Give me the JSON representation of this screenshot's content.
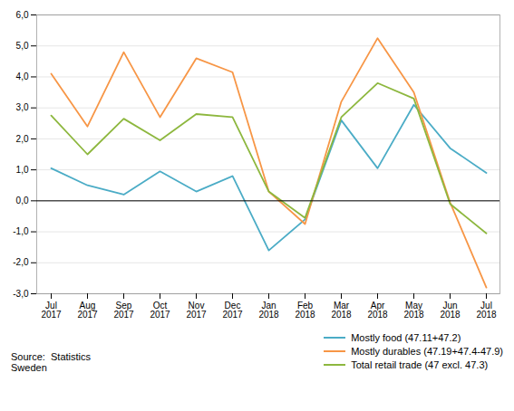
{
  "chart_data": {
    "type": "line",
    "categories": [
      "Jul\n2017",
      "Aug\n2017",
      "Sep\n2017",
      "Oct\n2017",
      "Nov\n2017",
      "Dec\n2017",
      "Jan\n2018",
      "Feb\n2018",
      "Mar\n2018",
      "Apr\n2018",
      "May\n2018",
      "Jun\n2018",
      "Jul\n2018"
    ],
    "series": [
      {
        "name": "Mostly food (47.11+47.2)",
        "color": "#4BACC6",
        "values": [
          1.05,
          0.5,
          0.2,
          0.95,
          0.3,
          0.8,
          -1.6,
          -0.6,
          2.6,
          1.05,
          3.1,
          1.7,
          0.9
        ]
      },
      {
        "name": "Mostly durables (47.19+47.4-47.9)",
        "color": "#F79646",
        "values": [
          4.1,
          2.4,
          4.8,
          2.7,
          4.6,
          4.15,
          0.3,
          -0.75,
          3.2,
          5.25,
          3.5,
          -0.05,
          -2.8
        ]
      },
      {
        "name": "Total retail trade (47 excl. 47.3)",
        "color": "#8DB73E",
        "values": [
          2.75,
          1.5,
          2.65,
          1.95,
          2.8,
          2.7,
          0.3,
          -0.55,
          2.7,
          3.8,
          3.3,
          -0.1,
          -1.05
        ]
      }
    ],
    "ylim": [
      -3.0,
      6.0
    ],
    "yticks": [
      {
        "value": -3.0,
        "label": "-3,0"
      },
      {
        "value": -2.0,
        "label": "-2,0"
      },
      {
        "value": -1.0,
        "label": "-1,0"
      },
      {
        "value": 0.0,
        "label": "0,0"
      },
      {
        "value": 1.0,
        "label": "1,0"
      },
      {
        "value": 2.0,
        "label": "2,0"
      },
      {
        "value": 3.0,
        "label": "3,0"
      },
      {
        "value": 4.0,
        "label": "4,0"
      },
      {
        "value": 5.0,
        "label": "5,0"
      },
      {
        "value": 6.0,
        "label": "6,0"
      }
    ],
    "grid": true,
    "legend": "lower right",
    "annotations": [
      "Source:  Statistics\nSweden"
    ]
  }
}
